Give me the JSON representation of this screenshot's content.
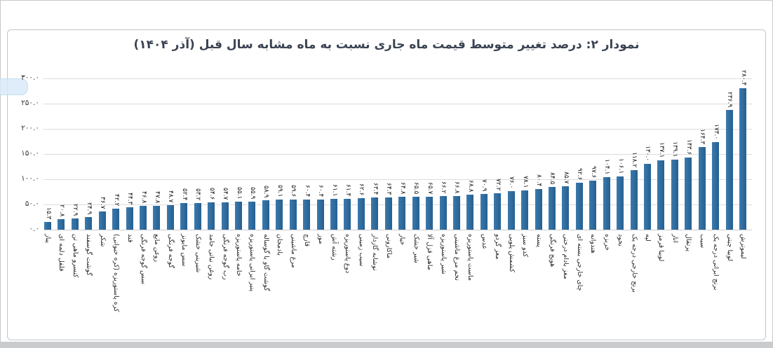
{
  "title": "نمودار ۲: درصد تغییر متوسط قیمت ماه جاری نسبت به ماه مشابه سال قبل (آذر ۱۴۰۴)",
  "colors": {
    "bar": "#2e6b9e",
    "grid": "#dcdcdc",
    "title_text": "#3a4352",
    "label_text": "#1c1c1c",
    "frame": "#c2c5c9",
    "bottom_strip": "#c9cbcd",
    "watermark": "#d9eaf8"
  },
  "chart_data": {
    "type": "bar",
    "title": "نمودار ۲: درصد تغییر متوسط قیمت ماه جاری نسبت به ماه مشابه سال قبل (آذر ۱۴۰۴)",
    "xlabel": "",
    "ylabel": "",
    "ylim": [
      0,
      300
    ],
    "ytick_step": 50,
    "ytick_label_format": "persian-digits-one-decimal",
    "grid": true,
    "legend": false,
    "value_labels": "rotated-90-above-bars",
    "category_labels": "rotated-90-below-axis",
    "categories": [
      "پیاز",
      "فلفل دلمه ای",
      "کنسرو ماهی تن",
      "گوشت گوسفند",
      "شکر",
      "کره پاستوریزه (کره حیوانی)",
      "قند",
      "سس گوجه فرنگی",
      "روغن مایع",
      "گوجه فرنگی",
      "سس مایونز",
      "شیرینی خشک",
      "روغن نباتی جامد",
      "رب گوجه فرنگی",
      "خامه پاستوریزه",
      "پنیر ایرانی پاستوریزه",
      "گوشت گاو یا گوساله",
      "بادمجان",
      "مرغ ماشینی",
      "قارچ",
      "موز",
      "رشته آش",
      "دوغ پاستوریزه",
      "سیب زمینی",
      "نوشابه گازدار",
      "ماکارونی",
      "خیار",
      "شیر خشک",
      "ماهی قزل آلا",
      "شیر پاستوریزه",
      "تخم مرغ ماشینی",
      "ماست پاستوریزه",
      "عدس",
      "مغز گردو",
      "کشمش پلویی",
      "کدو سبز",
      "پسته",
      "هویج فرنگی",
      "مغز بادام درختی",
      "چای خارجی بسته ای",
      "هندوانه",
      "خربزه",
      "نخود",
      "برنج خارجی درجه یک",
      "لپه",
      "لوبیا قرمز",
      "انار",
      "پرتقال",
      "سیب",
      "برنج ایرانی درجه یک",
      "لوبیا چیتی",
      "لیموترش"
    ],
    "values": [
      15.3,
      20.8,
      22.9,
      24.9,
      36.7,
      42.2,
      44.3,
      46.8,
      47.8,
      48.7,
      52.4,
      53.2,
      54.6,
      54.7,
      55.1,
      55.9,
      58.9,
      59.1,
      59.6,
      60.4,
      60.4,
      61.1,
      61.4,
      62.6,
      63.4,
      64.3,
      64.8,
      65.5,
      65.7,
      66.2,
      66.8,
      68.8,
      70.9,
      72.2,
      76.0,
      78.1,
      80.4,
      84.5,
      85.7,
      92.6,
      97.6,
      104.1,
      106.1,
      118.2,
      130.0,
      137.1,
      139.1,
      143.6,
      164.3,
      173.0,
      236.9,
      280.4
    ]
  }
}
